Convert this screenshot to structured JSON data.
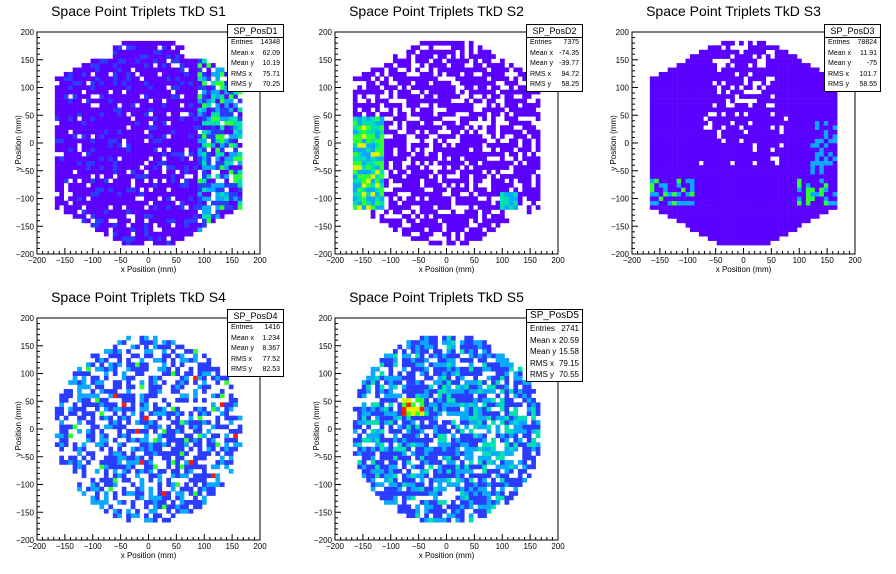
{
  "color_scale": [
    "#5a00ff",
    "#2a3cff",
    "#0aa8ff",
    "#00e0b0",
    "#30ff30",
    "#e8f000",
    "#ff1a00"
  ],
  "chart_data": [
    {
      "type": "heatmap",
      "title": "Space Point Triplets TkD S1",
      "xlabel": "x Position (mm)",
      "ylabel": "y Position (mm)",
      "xlim": [
        -200,
        200
      ],
      "ylim": [
        -200,
        200
      ],
      "x_ticks": [
        -200,
        -150,
        -100,
        -50,
        0,
        50,
        100,
        150,
        200
      ],
      "y_ticks": [
        -200,
        -150,
        -100,
        -50,
        0,
        50,
        100,
        150,
        200
      ],
      "stats": {
        "name": "SP_PosD1",
        "rows": [
          [
            "Entries",
            "14348"
          ],
          [
            "Mean x",
            "62.09"
          ],
          [
            "Mean y",
            "10.19"
          ],
          [
            "RMS x",
            "75.71"
          ],
          [
            "RMS y",
            "70.25"
          ]
        ]
      },
      "pattern": "hexagon-dense-right",
      "seed": 11
    },
    {
      "type": "heatmap",
      "title": "Space Point Triplets TkD S2",
      "xlabel": "x Position (mm)",
      "ylabel": "y Position (mm)",
      "xlim": [
        -200,
        200
      ],
      "ylim": [
        -200,
        200
      ],
      "x_ticks": [
        -200,
        -150,
        -100,
        -50,
        0,
        50,
        100,
        150,
        200
      ],
      "y_ticks": [
        -200,
        -150,
        -100,
        -50,
        0,
        50,
        100,
        150,
        200
      ],
      "stats": {
        "name": "SP_PosD2",
        "rows": [
          [
            "Entries",
            "7375"
          ],
          [
            "Mean x",
            "-74.35"
          ],
          [
            "Mean y",
            "-39.77"
          ],
          [
            "RMS x",
            "94.72"
          ],
          [
            "RMS y",
            "58.25"
          ]
        ]
      },
      "pattern": "hexagon-sparse-left",
      "seed": 23
    },
    {
      "type": "heatmap",
      "title": "Space Point Triplets TkD S3",
      "xlabel": "x Position (mm)",
      "ylabel": "y Position (mm)",
      "xlim": [
        -200,
        200
      ],
      "ylim": [
        -200,
        200
      ],
      "x_ticks": [
        -200,
        -150,
        -100,
        -50,
        0,
        50,
        100,
        150,
        200
      ],
      "y_ticks": [
        -200,
        -150,
        -100,
        -50,
        0,
        50,
        100,
        150,
        200
      ],
      "stats": {
        "name": "SP_PosD3",
        "rows": [
          [
            "Entries",
            "78824"
          ],
          [
            "Mean x",
            "11.91"
          ],
          [
            "Mean y",
            "-75"
          ],
          [
            "RMS x",
            "101.7"
          ],
          [
            "RMS y",
            "58.55"
          ]
        ]
      },
      "pattern": "hexagon-full",
      "seed": 37
    },
    {
      "type": "heatmap",
      "title": "Space Point Triplets TkD S4",
      "xlabel": "x Position (mm)",
      "ylabel": "y Position (mm)",
      "xlim": [
        -200,
        200
      ],
      "ylim": [
        -200,
        200
      ],
      "x_ticks": [
        -200,
        -150,
        -100,
        -50,
        0,
        50,
        100,
        150,
        200
      ],
      "y_ticks": [
        -200,
        -150,
        -100,
        -50,
        0,
        50,
        100,
        150,
        200
      ],
      "stats": {
        "name": "SP_PosD4",
        "rows": [
          [
            "Entries",
            "1416"
          ],
          [
            "Mean x",
            "1.234"
          ],
          [
            "Mean y",
            "8.367"
          ],
          [
            "RMS x",
            "77.52"
          ],
          [
            "RMS y",
            "82.53"
          ]
        ]
      },
      "pattern": "circle-sparse",
      "seed": 41
    },
    {
      "type": "heatmap",
      "title": "Space Point Triplets TkD S5",
      "xlabel": "x Position (mm)",
      "ylabel": "y Position (mm)",
      "xlim": [
        -200,
        200
      ],
      "ylim": [
        -200,
        200
      ],
      "x_ticks": [
        -200,
        -150,
        -100,
        -50,
        0,
        50,
        100,
        150,
        200
      ],
      "y_ticks": [
        -200,
        -150,
        -100,
        -50,
        0,
        50,
        100,
        150,
        200
      ],
      "stats": {
        "name": "SP_PosD5",
        "rows": [
          [
            "Entries",
            "2741"
          ],
          [
            "Mean x",
            "20.59"
          ],
          [
            "Mean y",
            "15.58"
          ],
          [
            "RMS x",
            "79.15"
          ],
          [
            "RMS y",
            "70.55"
          ]
        ]
      },
      "pattern": "circle-medium",
      "seed": 53
    }
  ]
}
